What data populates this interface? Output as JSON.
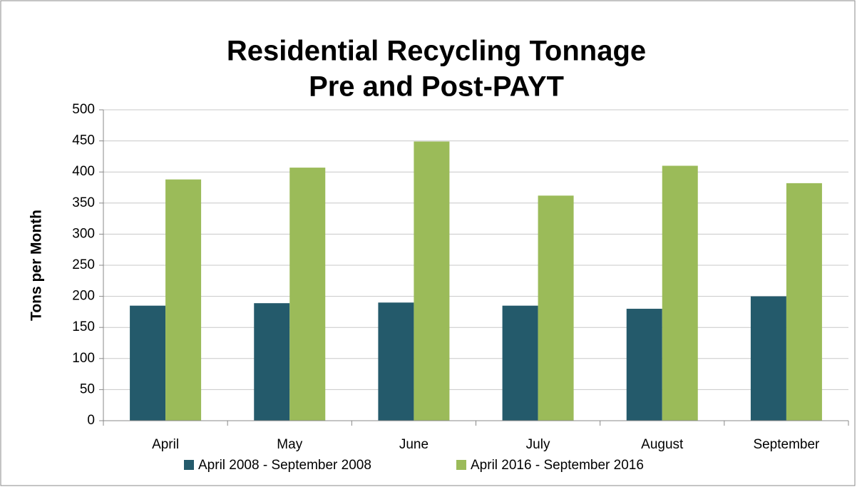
{
  "chart_data": {
    "type": "bar",
    "title": [
      "Residential Recycling Tonnage",
      "Pre and Post-PAYT"
    ],
    "y_label": "Tons per Month",
    "categories": [
      "April",
      "May",
      "June",
      "July",
      "August",
      "September"
    ],
    "series": [
      {
        "name": "April 2008 - September 2008",
        "color": "#245a6b",
        "values": [
          185,
          189,
          190,
          185,
          180,
          200
        ]
      },
      {
        "name": "April 2016 - September 2016",
        "color": "#9bbb59",
        "values": [
          388,
          407,
          449,
          362,
          410,
          382
        ]
      }
    ],
    "ylim": [
      0,
      500
    ],
    "yticks": [
      0,
      50,
      100,
      150,
      200,
      250,
      300,
      350,
      400,
      450,
      500
    ],
    "grid": true,
    "legend": "bottom"
  }
}
